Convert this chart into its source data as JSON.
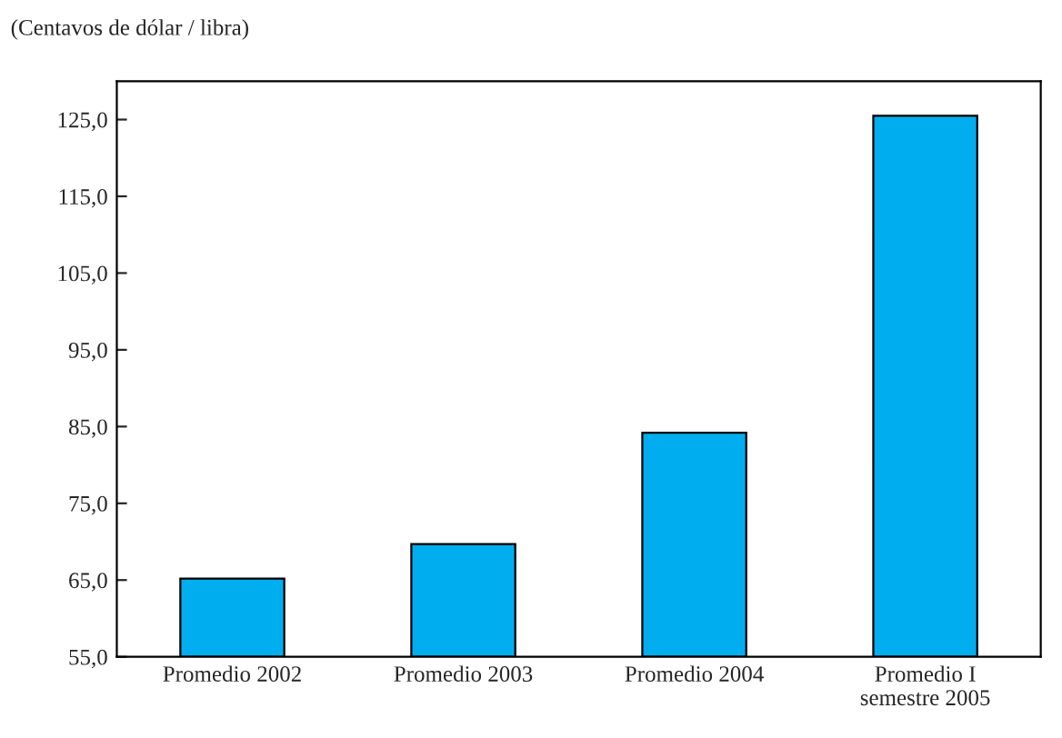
{
  "chart_data": {
    "type": "bar",
    "ylabel": "(Centavos de dólar / libra)",
    "categories": [
      "Promedio 2002",
      "Promedio 2003",
      "Promedio 2004",
      "Promedio I\nsemestre 2005"
    ],
    "values": [
      65.2,
      69.7,
      84.2,
      125.5
    ],
    "color": "#00aeef",
    "ylim": [
      55,
      130
    ],
    "yticks": [
      {
        "value": 55,
        "label": "55,0"
      },
      {
        "value": 65,
        "label": "65,0"
      },
      {
        "value": 75,
        "label": "75,0"
      },
      {
        "value": 85,
        "label": "85,0"
      },
      {
        "value": 95,
        "label": "95,0"
      },
      {
        "value": 105,
        "label": "105,0"
      },
      {
        "value": 115,
        "label": "115,0"
      },
      {
        "value": 125,
        "label": "125,0"
      }
    ],
    "grid": false,
    "legend": false
  }
}
